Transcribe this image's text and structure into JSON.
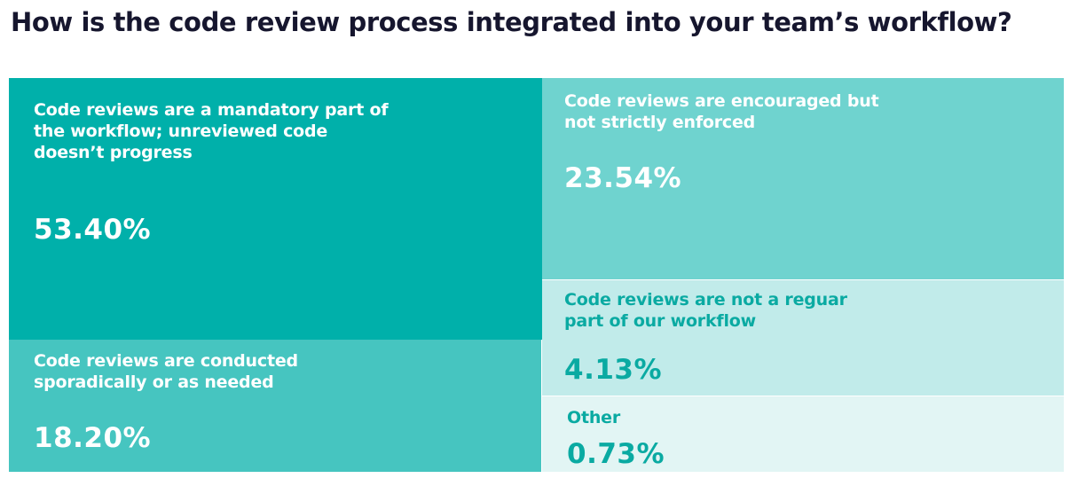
{
  "title": "How is the code review process integrated into your team’s workflow?",
  "colors": {
    "title": "#16162e",
    "tile_dark": "#00b0aa",
    "tile_medium": "#46c5c0",
    "tile_light": "#6fd3cf",
    "tile_pale": "#c1ebea",
    "tile_palest": "#e2f5f4",
    "label_light": "#ffffff",
    "label_teal": "#0aaaa2"
  },
  "chart_data": {
    "type": "treemap",
    "title": "How is the code review process integrated into your team’s workflow?",
    "unit": "%",
    "items": [
      {
        "label": "Code reviews are a mandatory part of the workflow; unreviewed code doesn’t progress",
        "value": 53.4,
        "display": "53.40%",
        "color": "#00b0aa",
        "text_color": "#ffffff"
      },
      {
        "label": "Code reviews are encouraged but not strictly enforced",
        "value": 23.54,
        "display": "23.54%",
        "color": "#6fd3cf",
        "text_color": "#ffffff"
      },
      {
        "label": "Code reviews are conducted sporadically or as needed",
        "value": 18.2,
        "display": "18.20%",
        "color": "#46c5c0",
        "text_color": "#ffffff"
      },
      {
        "label": "Code reviews are not a reguar part of our workflow",
        "value": 4.13,
        "display": "4.13%",
        "color": "#c1ebea",
        "text_color": "#0aaaa2"
      },
      {
        "label": "Other",
        "value": 0.73,
        "display": "0.73%",
        "color": "#e2f5f4",
        "text_color": "#0aaaa2"
      }
    ]
  }
}
